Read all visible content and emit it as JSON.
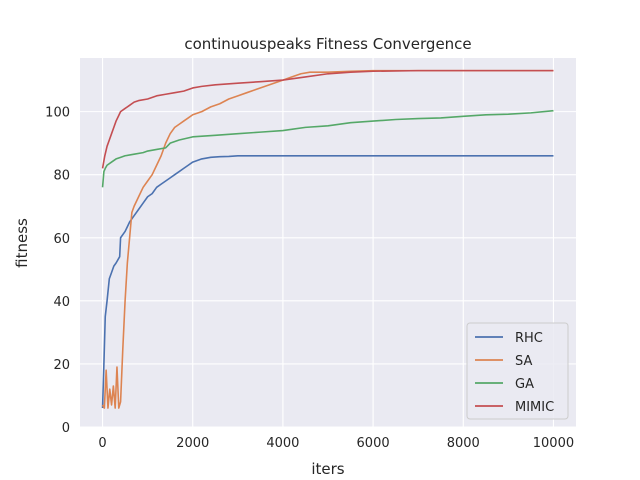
{
  "chart_data": {
    "type": "line",
    "title": "continuouspeaks Fitness Convergence",
    "xlabel": "iters",
    "ylabel": "fitness",
    "xlim": [
      -500,
      10500
    ],
    "ylim": [
      0,
      117
    ],
    "xticks": [
      0,
      2000,
      4000,
      6000,
      8000,
      10000
    ],
    "xtick_labels": [
      "0",
      "2000",
      "4000",
      "6000",
      "8000",
      "10000"
    ],
    "yticks": [
      0,
      20,
      40,
      60,
      80,
      100
    ],
    "ytick_labels": [
      "0",
      "20",
      "40",
      "60",
      "80",
      "100"
    ],
    "grid": true,
    "legend_position": "lower-right",
    "background": "#eaeaf2",
    "series": [
      {
        "name": "RHC",
        "color": "#4c72b0",
        "x": [
          0,
          30,
          60,
          100,
          150,
          200,
          250,
          300,
          380,
          400,
          500,
          600,
          700,
          800,
          900,
          1000,
          1100,
          1200,
          1300,
          1400,
          1500,
          1600,
          1700,
          1800,
          1900,
          2000,
          2200,
          2400,
          2600,
          2800,
          3000,
          4000,
          5000,
          6000,
          7000,
          8000,
          9000,
          10000
        ],
        "y": [
          6,
          20,
          35,
          40,
          47,
          49,
          51,
          52,
          54,
          60,
          62,
          65,
          67,
          69,
          71,
          73,
          74,
          76,
          77,
          78,
          79,
          80,
          81,
          82,
          83,
          84,
          85,
          85.5,
          85.7,
          85.8,
          86,
          86,
          86,
          86,
          86,
          86,
          86,
          86
        ]
      },
      {
        "name": "SA",
        "color": "#dd8452",
        "x": [
          0,
          40,
          80,
          120,
          160,
          200,
          240,
          280,
          320,
          360,
          400,
          450,
          500,
          550,
          600,
          650,
          700,
          800,
          900,
          1000,
          1100,
          1200,
          1300,
          1400,
          1500,
          1600,
          1700,
          1800,
          1900,
          2000,
          2200,
          2400,
          2600,
          2800,
          3000,
          3200,
          3400,
          3600,
          3800,
          4000,
          4200,
          4400,
          4600,
          4800,
          5000,
          5500,
          6000,
          7000,
          8000,
          9000,
          10000
        ],
        "y": [
          7,
          6,
          18,
          6,
          12,
          7,
          13,
          6,
          19,
          6,
          8,
          25,
          40,
          52,
          60,
          68,
          70,
          73,
          76,
          78,
          80,
          83,
          86,
          90,
          93,
          95,
          96,
          97,
          98,
          99,
          100,
          101.5,
          102.5,
          104,
          105,
          106,
          107,
          108,
          109,
          110,
          111,
          112,
          112.5,
          112.5,
          112.5,
          112.8,
          113,
          113,
          113,
          113,
          113
        ]
      },
      {
        "name": "GA",
        "color": "#55a868",
        "x": [
          0,
          30,
          60,
          100,
          200,
          300,
          400,
          500,
          700,
          900,
          1000,
          1200,
          1400,
          1500,
          1700,
          2000,
          2500,
          3000,
          3500,
          4000,
          4500,
          5000,
          5500,
          6000,
          6500,
          7000,
          7500,
          8000,
          8500,
          9000,
          9500,
          10000
        ],
        "y": [
          76,
          81,
          82,
          83,
          84,
          85,
          85.5,
          86,
          86.5,
          87,
          87.5,
          88,
          88.5,
          90,
          91,
          92,
          92.5,
          93,
          93.5,
          94,
          95,
          95.5,
          96.5,
          97,
          97.5,
          97.8,
          98,
          98.5,
          99,
          99.2,
          99.6,
          100.3
        ]
      },
      {
        "name": "MIMIC",
        "color": "#c44e52",
        "x": [
          0,
          50,
          100,
          150,
          200,
          250,
          300,
          350,
          400,
          500,
          600,
          700,
          800,
          1000,
          1200,
          1400,
          1600,
          1800,
          2000,
          2200,
          2500,
          3000,
          3500,
          4000,
          4500,
          5000,
          5500,
          6000,
          7000,
          8000,
          9000,
          10000
        ],
        "y": [
          82,
          86,
          89,
          91,
          93,
          95,
          97,
          98.5,
          100,
          101,
          102,
          103,
          103.5,
          104,
          105,
          105.5,
          106,
          106.5,
          107.5,
          108,
          108.5,
          109,
          109.5,
          110,
          111,
          112,
          112.5,
          112.8,
          113,
          113,
          113,
          113
        ]
      }
    ]
  }
}
